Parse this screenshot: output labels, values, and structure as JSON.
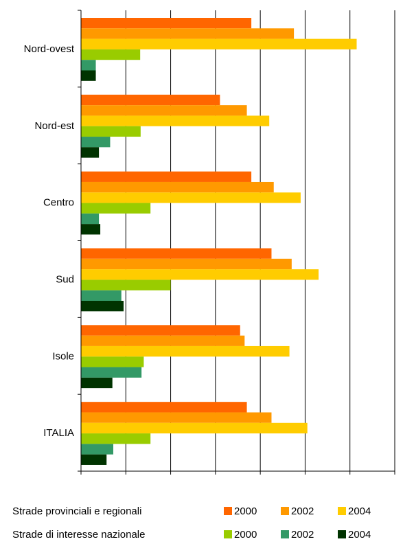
{
  "chart_data": {
    "type": "bar",
    "orientation": "horizontal",
    "categories": [
      "Nord-ovest",
      "Nord-est",
      "Centro",
      "Sud",
      "Isole",
      "ITALIA"
    ],
    "xlim": [
      0,
      70
    ],
    "xticks": [
      "0",
      "10",
      "20",
      "30",
      "40",
      "50",
      "60",
      "70"
    ],
    "grid": true,
    "series": [
      {
        "group": "Strade provinciali e regionali",
        "name": "2000",
        "color": "#ff6600",
        "values": [
          38,
          31,
          38,
          42.5,
          35.5,
          37
        ]
      },
      {
        "group": "Strade provinciali e regionali",
        "name": "2002",
        "color": "#ff9900",
        "values": [
          47.5,
          37,
          43,
          47,
          36.5,
          42.5
        ]
      },
      {
        "group": "Strade provinciali e regionali",
        "name": "2004",
        "color": "#ffcc00",
        "values": [
          61.5,
          42,
          49,
          53,
          46.5,
          50.5
        ]
      },
      {
        "group": "Strade di interesse nazionale",
        "name": "2000",
        "color": "#99cc00",
        "values": [
          13.2,
          13.3,
          15.5,
          20,
          14,
          15.5
        ]
      },
      {
        "group": "Strade di interesse nazionale",
        "name": "2002",
        "color": "#339966",
        "values": [
          3.3,
          6.5,
          4,
          9,
          13.5,
          7.2
        ]
      },
      {
        "group": "Strade di interesse nazionale",
        "name": "2004",
        "color": "#003300",
        "values": [
          3.3,
          4,
          4.3,
          9.5,
          7,
          5.7
        ]
      }
    ],
    "legend": {
      "placement": "bottom",
      "groups": [
        {
          "label": "Strade provinciali e regionali",
          "items": [
            "2000",
            "2002",
            "2004"
          ]
        },
        {
          "label": "Strade di interesse nazionale",
          "items": [
            "2000",
            "2002",
            "2004"
          ]
        }
      ]
    }
  }
}
